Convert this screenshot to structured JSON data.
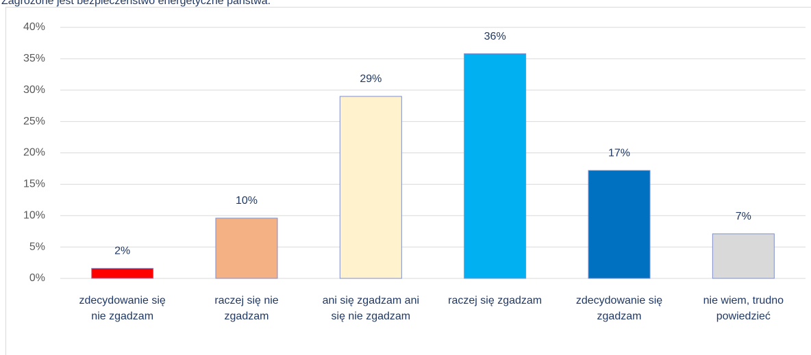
{
  "chart_data": {
    "type": "bar",
    "title": "Zagrożone jest bezpieczeństwo energetyczne państwa.",
    "categories": [
      "zdecydowanie się nie zgadzam",
      "raczej się nie zgadzam",
      "ani się zgadzam ani się nie zgadzam",
      "raczej się zgadzam",
      "zdecydowanie się zgadzam",
      "nie wiem, trudno powiedzieć"
    ],
    "values": [
      1.6,
      9.6,
      29,
      35.8,
      17.2,
      7.1
    ],
    "value_labels": [
      "2%",
      "10%",
      "29%",
      "36%",
      "17%",
      "7%"
    ],
    "colors": [
      "#ff0000",
      "#f4b183",
      "#fff2cc",
      "#00b0f0",
      "#0070c0",
      "#d9d9d9"
    ],
    "ylim": [
      0,
      40
    ],
    "yticks": [
      {
        "value": 0,
        "label": "0%"
      },
      {
        "value": 5,
        "label": "5%"
      },
      {
        "value": 10,
        "label": "10%"
      },
      {
        "value": 15,
        "label": "15%"
      },
      {
        "value": 20,
        "label": "20%"
      },
      {
        "value": 25,
        "label": "25%"
      },
      {
        "value": 30,
        "label": "30%"
      },
      {
        "value": 35,
        "label": "35%"
      },
      {
        "value": 40,
        "label": "40%"
      }
    ],
    "grid": true
  }
}
